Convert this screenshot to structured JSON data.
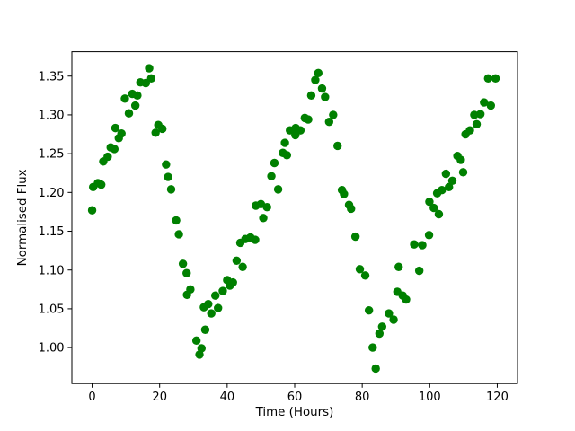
{
  "figure": {
    "background": "#ffffff",
    "spine_color": "#000000",
    "text_color": "#000000"
  },
  "chart_data": {
    "type": "scatter",
    "title": "",
    "xlabel": "Time (Hours)",
    "ylabel": "Normalised Flux",
    "legend": null,
    "grid": false,
    "marker": {
      "shape": "circle",
      "color": "#008000",
      "radius_px": 4.7
    },
    "xlim": [
      -6,
      126
    ],
    "ylim": [
      0.9536,
      1.3814
    ],
    "xticks": [
      0,
      20,
      40,
      60,
      80,
      100,
      120
    ],
    "xtick_labels": [
      "0",
      "20",
      "40",
      "60",
      "80",
      "100",
      "120"
    ],
    "yticks": [
      1.0,
      1.05,
      1.1,
      1.15,
      1.2,
      1.25,
      1.3,
      1.35
    ],
    "ytick_labels": [
      "1.00",
      "1.05",
      "1.10",
      "1.15",
      "1.20",
      "1.25",
      "1.30",
      "1.35"
    ],
    "points": [
      [
        0.0,
        1.177
      ],
      [
        0.3,
        1.207
      ],
      [
        1.7,
        1.212
      ],
      [
        2.7,
        1.21
      ],
      [
        3.3,
        1.24
      ],
      [
        4.6,
        1.246
      ],
      [
        5.5,
        1.258
      ],
      [
        6.6,
        1.256
      ],
      [
        6.9,
        1.283
      ],
      [
        7.9,
        1.27
      ],
      [
        8.7,
        1.276
      ],
      [
        9.7,
        1.321
      ],
      [
        10.9,
        1.302
      ],
      [
        11.9,
        1.327
      ],
      [
        12.8,
        1.312
      ],
      [
        13.4,
        1.325
      ],
      [
        14.3,
        1.342
      ],
      [
        15.9,
        1.341
      ],
      [
        16.9,
        1.36
      ],
      [
        17.5,
        1.347
      ],
      [
        18.8,
        1.277
      ],
      [
        19.6,
        1.287
      ],
      [
        20.8,
        1.282
      ],
      [
        21.9,
        1.236
      ],
      [
        22.5,
        1.22
      ],
      [
        23.4,
        1.204
      ],
      [
        24.9,
        1.164
      ],
      [
        25.7,
        1.146
      ],
      [
        26.9,
        1.108
      ],
      [
        28.0,
        1.096
      ],
      [
        28.1,
        1.068
      ],
      [
        29.1,
        1.075
      ],
      [
        30.9,
        1.009
      ],
      [
        31.8,
        0.991
      ],
      [
        32.4,
        0.999
      ],
      [
        33.1,
        1.052
      ],
      [
        33.5,
        1.023
      ],
      [
        34.4,
        1.056
      ],
      [
        35.3,
        1.044
      ],
      [
        36.5,
        1.067
      ],
      [
        37.3,
        1.051
      ],
      [
        38.7,
        1.073
      ],
      [
        40.0,
        1.087
      ],
      [
        40.8,
        1.08
      ],
      [
        41.7,
        1.084
      ],
      [
        42.8,
        1.112
      ],
      [
        43.9,
        1.135
      ],
      [
        44.6,
        1.104
      ],
      [
        45.4,
        1.14
      ],
      [
        46.9,
        1.142
      ],
      [
        48.3,
        1.139
      ],
      [
        48.5,
        1.183
      ],
      [
        50.0,
        1.185
      ],
      [
        50.7,
        1.167
      ],
      [
        51.8,
        1.181
      ],
      [
        53.1,
        1.221
      ],
      [
        54.0,
        1.238
      ],
      [
        55.1,
        1.204
      ],
      [
        56.5,
        1.251
      ],
      [
        57.1,
        1.264
      ],
      [
        57.7,
        1.248
      ],
      [
        58.6,
        1.28
      ],
      [
        60.2,
        1.274
      ],
      [
        60.3,
        1.283
      ],
      [
        61.7,
        1.28
      ],
      [
        63.0,
        1.296
      ],
      [
        64.0,
        1.294
      ],
      [
        64.9,
        1.325
      ],
      [
        66.1,
        1.345
      ],
      [
        67.0,
        1.354
      ],
      [
        68.1,
        1.334
      ],
      [
        69.0,
        1.323
      ],
      [
        70.2,
        1.291
      ],
      [
        71.4,
        1.3
      ],
      [
        72.7,
        1.26
      ],
      [
        74.0,
        1.203
      ],
      [
        74.6,
        1.198
      ],
      [
        76.1,
        1.184
      ],
      [
        76.7,
        1.179
      ],
      [
        78.0,
        1.143
      ],
      [
        79.3,
        1.101
      ],
      [
        80.9,
        1.093
      ],
      [
        82.0,
        1.048
      ],
      [
        83.1,
        1.0
      ],
      [
        84.0,
        0.973
      ],
      [
        85.1,
        1.018
      ],
      [
        85.9,
        1.027
      ],
      [
        87.9,
        1.044
      ],
      [
        89.3,
        1.036
      ],
      [
        90.4,
        1.072
      ],
      [
        90.8,
        1.104
      ],
      [
        92.0,
        1.067
      ],
      [
        93.0,
        1.062
      ],
      [
        95.4,
        1.133
      ],
      [
        96.9,
        1.099
      ],
      [
        97.8,
        1.132
      ],
      [
        99.8,
        1.145
      ],
      [
        99.9,
        1.188
      ],
      [
        101.2,
        1.18
      ],
      [
        102.2,
        1.199
      ],
      [
        102.7,
        1.172
      ],
      [
        103.6,
        1.203
      ],
      [
        104.8,
        1.224
      ],
      [
        105.7,
        1.207
      ],
      [
        106.7,
        1.215
      ],
      [
        108.2,
        1.247
      ],
      [
        109.2,
        1.242
      ],
      [
        109.9,
        1.226
      ],
      [
        110.6,
        1.275
      ],
      [
        111.9,
        1.28
      ],
      [
        113.2,
        1.3
      ],
      [
        113.9,
        1.288
      ],
      [
        115.0,
        1.301
      ],
      [
        116.1,
        1.316
      ],
      [
        117.3,
        1.347
      ],
      [
        118.1,
        1.312
      ],
      [
        119.5,
        1.347
      ]
    ]
  }
}
